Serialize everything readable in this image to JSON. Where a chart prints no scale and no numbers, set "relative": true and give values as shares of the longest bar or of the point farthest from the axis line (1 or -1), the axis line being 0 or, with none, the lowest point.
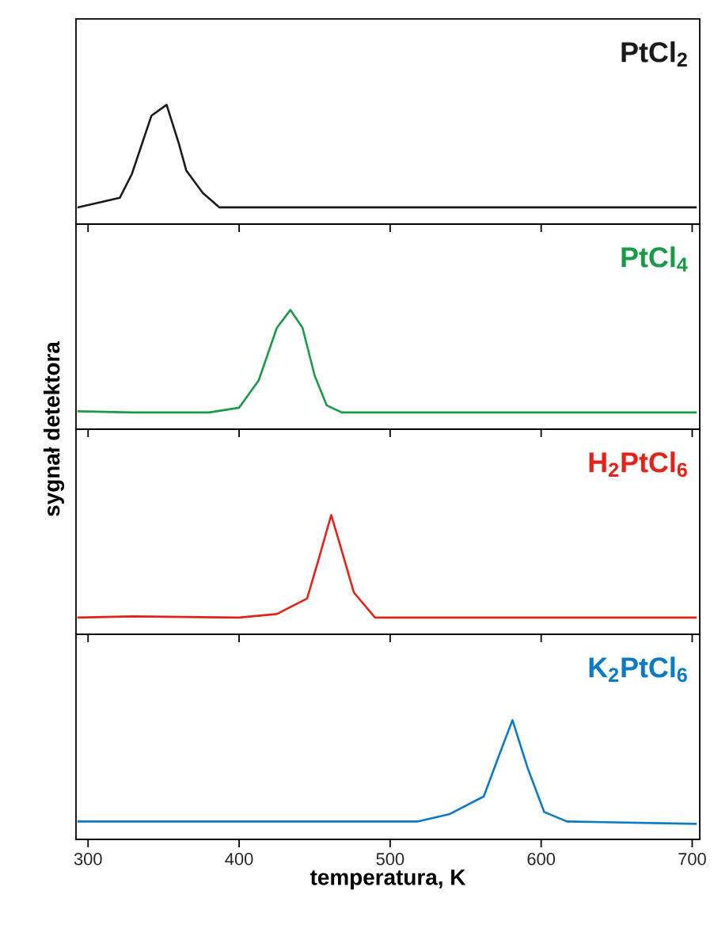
{
  "chart_data": [
    {
      "type": "line",
      "relative": true,
      "xlim": [
        292,
        705
      ],
      "xticks": [
        300,
        400,
        500,
        600,
        700
      ],
      "tick_labels": false,
      "series": [
        {
          "name": "PtCl$_{2}$",
          "color": "#1a1a1a",
          "x": [
            293,
            321,
            329,
            342,
            352,
            360,
            365,
            376,
            387,
            703
          ],
          "values": [
            0.14,
            0.22,
            0.42,
            0.91,
            1.0,
            0.68,
            0.45,
            0.26,
            0.14,
            0.14
          ]
        }
      ]
    },
    {
      "type": "line",
      "relative": true,
      "xlim": [
        292,
        705
      ],
      "xticks": [
        300,
        400,
        500,
        600,
        700
      ],
      "tick_labels": false,
      "ylabel": "sygnał detektora",
      "series": [
        {
          "name": "PtCl$_{4}$",
          "color": "#1a9a48",
          "x": [
            293,
            330,
            380,
            400,
            413,
            425,
            434,
            442,
            450,
            458,
            468,
            703
          ],
          "values": [
            0.15,
            0.14,
            0.14,
            0.18,
            0.41,
            0.85,
            1.0,
            0.85,
            0.45,
            0.2,
            0.14,
            0.14
          ]
        }
      ]
    },
    {
      "type": "line",
      "relative": true,
      "xlim": [
        292,
        705
      ],
      "xticks": [
        300,
        400,
        500,
        600,
        700
      ],
      "tick_labels": false,
      "series": [
        {
          "name": "H$_{2}$PtCl$_{6}$",
          "color": "#e2231a",
          "x": [
            293,
            330,
            400,
            425,
            445,
            452,
            461,
            468,
            476,
            490,
            703
          ],
          "values": [
            0.14,
            0.15,
            0.14,
            0.17,
            0.3,
            0.6,
            1.0,
            0.7,
            0.35,
            0.14,
            0.14
          ]
        }
      ]
    },
    {
      "type": "line",
      "relative": true,
      "xlim": [
        292,
        705
      ],
      "xticks": [
        300,
        400,
        500,
        600,
        700
      ],
      "tick_labels": "x",
      "xlabel": "temperatura, K",
      "series": [
        {
          "name": "K$_{2}$PtCl$_{6}$",
          "color": "#0a7ac4",
          "x": [
            293,
            400,
            518,
            539,
            562,
            572,
            581,
            591,
            602,
            617,
            703
          ],
          "values": [
            0.15,
            0.15,
            0.15,
            0.21,
            0.36,
            0.7,
            1.0,
            0.6,
            0.23,
            0.15,
            0.13
          ]
        }
      ]
    }
  ]
}
